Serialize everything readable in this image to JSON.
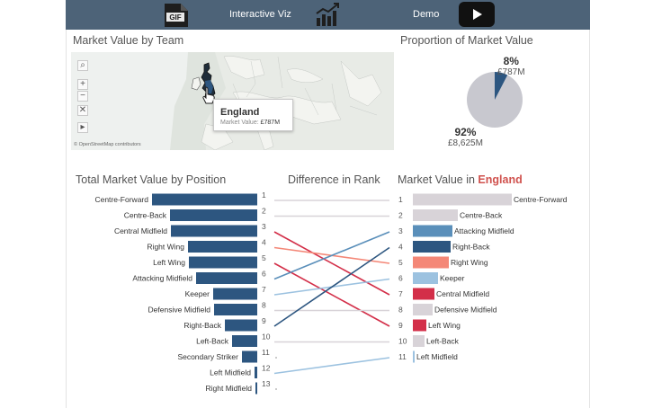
{
  "topbar": {
    "left_icon": "gif-file-icon",
    "title": "Interactive Viz",
    "center_icon": "bar-chart-icon",
    "demo_label": "Demo",
    "play_icon": "play-icon"
  },
  "map_section": {
    "title": "Market Value by Team",
    "controls": [
      "search-icon",
      "zoom-in-icon",
      "zoom-out-icon",
      "reset-icon",
      "pan-icon"
    ],
    "tooltip": {
      "team": "England",
      "label": "Market Value:",
      "value": "£787M"
    },
    "attribution": "© OpenStreetMap contributors"
  },
  "pie_section": {
    "title": "Proportion of Market Value",
    "small_pct": "8%",
    "small_value": "£787M",
    "large_pct": "92%",
    "large_value": "£8,625M"
  },
  "position_section": {
    "title": "Total Market Value by Position"
  },
  "rank_section": {
    "title": "Difference in Rank"
  },
  "team_section": {
    "title_prefix": "Market Value in",
    "team": "England"
  },
  "colors": {
    "topbar": "#4d6378",
    "bar_navy": "#2d5680",
    "england_dark": "#2d5680",
    "england_mid": "#5a8fba",
    "england_light": "#9cc2e0",
    "england_red": "#d32f49",
    "england_salmon": "#f48777",
    "england_grey": "#d8d3d8",
    "pie_grey": "#c8c8cf",
    "pie_navy": "#2d5680"
  },
  "chart_data": [
    {
      "type": "bar",
      "title": "Total Market Value by Position",
      "orientation": "horizontal",
      "categories": [
        "Centre-Forward",
        "Centre-Back",
        "Central Midfield",
        "Right Wing",
        "Left Wing",
        "Attacking Midfield",
        "Keeper",
        "Defensive Midfield",
        "Right-Back",
        "Left-Back",
        "Secondary Striker",
        "Left Midfield",
        "Right Midfield"
      ],
      "ranks": [
        "1",
        "2",
        "3",
        "4",
        "5",
        "6",
        "7",
        "8",
        "9",
        "10",
        "11",
        "12",
        "13"
      ],
      "values": [
        117,
        97,
        96,
        77,
        76,
        68,
        49,
        48,
        36,
        28,
        17,
        3,
        2
      ]
    },
    {
      "type": "line",
      "title": "Difference in Rank",
      "slopes": [
        {
          "position": "Centre-Forward",
          "overall_rank": 1,
          "team_rank": 1,
          "color": "#d8d3d8"
        },
        {
          "position": "Centre-Back",
          "overall_rank": 2,
          "team_rank": 2,
          "color": "#d8d3d8"
        },
        {
          "position": "Central Midfield",
          "overall_rank": 3,
          "team_rank": 7,
          "color": "#d32f49"
        },
        {
          "position": "Right Wing",
          "overall_rank": 4,
          "team_rank": 5,
          "color": "#f48777"
        },
        {
          "position": "Left Wing",
          "overall_rank": 5,
          "team_rank": 9,
          "color": "#d32f49"
        },
        {
          "position": "Attacking Midfield",
          "overall_rank": 6,
          "team_rank": 3,
          "color": "#5a8fba"
        },
        {
          "position": "Keeper",
          "overall_rank": 7,
          "team_rank": 6,
          "color": "#9cc2e0"
        },
        {
          "position": "Defensive Midfield",
          "overall_rank": 8,
          "team_rank": 8,
          "color": "#d8d3d8"
        },
        {
          "position": "Right-Back",
          "overall_rank": 9,
          "team_rank": 4,
          "color": "#2d5680"
        },
        {
          "position": "Left-Back",
          "overall_rank": 10,
          "team_rank": 10,
          "color": "#d8d3d8"
        },
        {
          "position": "Secondary Striker",
          "overall_rank": 11,
          "team_rank": null,
          "color": "#d8d3d8"
        },
        {
          "position": "Left Midfield",
          "overall_rank": 12,
          "team_rank": 11,
          "color": "#9cc2e0"
        },
        {
          "position": "Right Midfield",
          "overall_rank": 13,
          "team_rank": null,
          "color": "#d8d3d8"
        }
      ]
    },
    {
      "type": "bar",
      "title": "Market Value in England",
      "orientation": "horizontal",
      "categories": [
        "Centre-Forward",
        "Centre-Back",
        "Attacking Midfield",
        "Right-Back",
        "Right Wing",
        "Keeper",
        "Central Midfield",
        "Defensive Midfield",
        "Left Wing",
        "Left-Back",
        "Left Midfield"
      ],
      "ranks": [
        "1",
        "2",
        "3",
        "4",
        "5",
        "6",
        "7",
        "8",
        "9",
        "10",
        "11"
      ],
      "values": [
        110,
        50,
        44,
        42,
        40,
        28,
        24,
        22,
        15,
        13,
        1
      ],
      "colors": [
        "#d8d3d8",
        "#d8d3d8",
        "#5a8fba",
        "#2d5680",
        "#f48777",
        "#9cc2e0",
        "#d32f49",
        "#d8d3d8",
        "#d32f49",
        "#d8d3d8",
        "#9cc2e0"
      ]
    },
    {
      "type": "pie",
      "title": "Proportion of Market Value",
      "slices": [
        {
          "label": "£787M",
          "percent": 8,
          "color": "#2d5680"
        },
        {
          "label": "£8,625M",
          "percent": 92,
          "color": "#c8c8cf"
        }
      ]
    }
  ]
}
